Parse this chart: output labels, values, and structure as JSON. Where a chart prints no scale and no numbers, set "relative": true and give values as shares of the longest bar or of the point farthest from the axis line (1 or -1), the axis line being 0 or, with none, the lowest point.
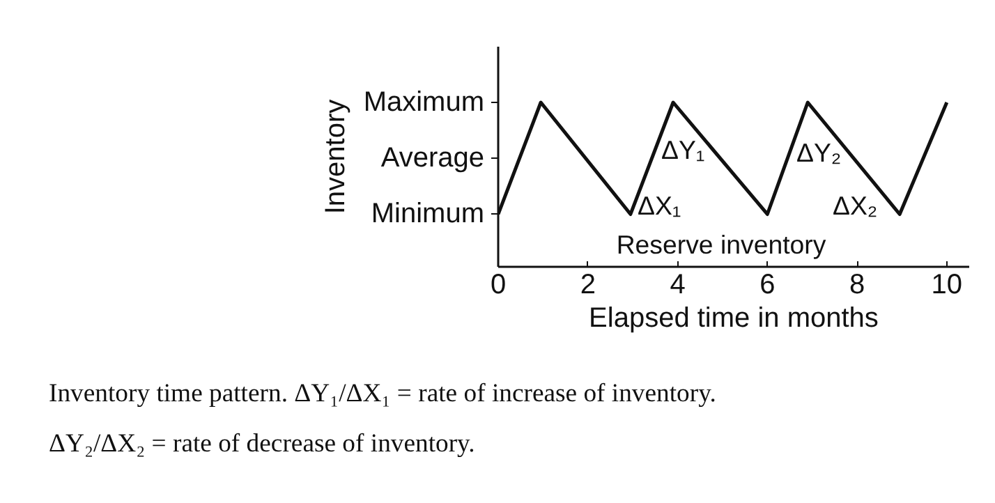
{
  "chart_data": {
    "type": "line",
    "relative": true,
    "xlabel": "Elapsed time in months",
    "x": [
      0,
      0.95,
      2.95,
      3.9,
      6.0,
      6.9,
      8.95,
      10
    ],
    "series": [
      {
        "color": "#111111",
        "values": [
          0.32,
          1,
          0.32,
          1,
          0.32,
          1,
          0.32,
          1
        ]
      }
    ],
    "xlim": [
      0,
      10.5
    ],
    "xticks": [
      0,
      2,
      4,
      6,
      8,
      10
    ],
    "annotations": [
      "Inventory",
      "Maximum",
      "Average",
      "Minimum",
      "ΔY₁",
      "ΔX₁",
      "ΔY₂",
      "ΔX₂",
      "Reserve inventory",
      "Inventory time pattern. ΔY₁/ΔX₁ = rate of increase of inventory.",
      "ΔY₂/ΔX₂ = rate of decrease of inventory."
    ]
  }
}
